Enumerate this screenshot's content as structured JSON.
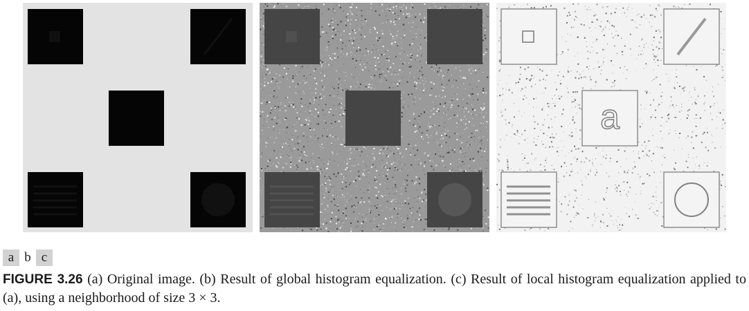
{
  "panel_labels": [
    "a",
    "b",
    "c"
  ],
  "panel_c_letter": "a",
  "caption": {
    "figure_label": "FIGURE 3.26",
    "text": "(a) Original image. (b) Result of global histogram equalization. (c) Result of local histogram equalization applied to (a), using a neighborhood of size 3 × 3."
  }
}
